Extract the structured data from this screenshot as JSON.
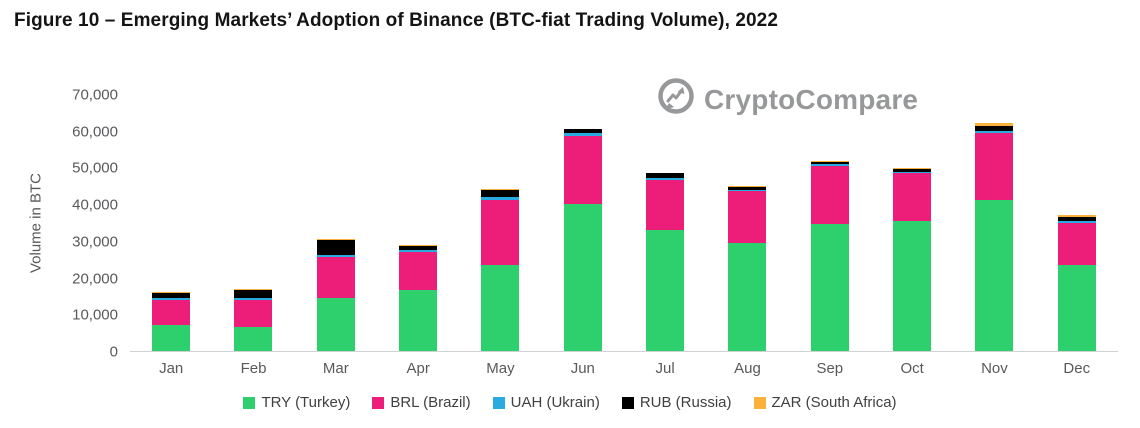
{
  "figure": {
    "title": "Figure 10 – Emerging Markets’ Adoption of Binance (BTC-fiat Trading Volume), 2022"
  },
  "watermark": {
    "text": "CryptoCompare",
    "color": "#97989a"
  },
  "chart_data": {
    "type": "bar",
    "stacked": true,
    "title": "Figure 10 – Emerging Markets’ Adoption of Binance (BTC-fiat Trading Volume), 2022",
    "xlabel": "",
    "ylabel": "Volume in BTC",
    "ylim": [
      0,
      70000
    ],
    "ytick_step": 10000,
    "yticks": [
      "70,000",
      "60,000",
      "50,000",
      "40,000",
      "30,000",
      "20,000",
      "10,000",
      "0"
    ],
    "grid": false,
    "legend_position": "bottom",
    "categories": [
      "Jan",
      "Feb",
      "Mar",
      "Apr",
      "May",
      "Jun",
      "Jul",
      "Aug",
      "Sep",
      "Oct",
      "Nov",
      "Dec"
    ],
    "series": [
      {
        "name": "TRY (Turkey)",
        "color": "#2ed06e",
        "values": [
          7000,
          6500,
          14500,
          16500,
          23500,
          40000,
          33000,
          29500,
          34500,
          35500,
          41000,
          23500
        ]
      },
      {
        "name": "BRL (Brazil)",
        "color": "#ed1e79",
        "values": [
          7000,
          7500,
          11000,
          10500,
          17500,
          18500,
          13500,
          14000,
          16000,
          13000,
          18500,
          11500
        ]
      },
      {
        "name": "UAH (Ukrain)",
        "color": "#29abe2",
        "values": [
          400,
          500,
          700,
          500,
          900,
          900,
          500,
          400,
          400,
          400,
          500,
          400
        ]
      },
      {
        "name": "RUB (Russia)",
        "color": "#000000",
        "values": [
          1500,
          2200,
          4000,
          1200,
          2000,
          1000,
          1500,
          900,
          700,
          800,
          1300,
          1200
        ]
      },
      {
        "name": "ZAR (South Africa)",
        "color": "#fbb03b",
        "values": [
          100,
          100,
          200,
          100,
          200,
          200,
          100,
          100,
          200,
          200,
          700,
          500
        ]
      }
    ]
  }
}
